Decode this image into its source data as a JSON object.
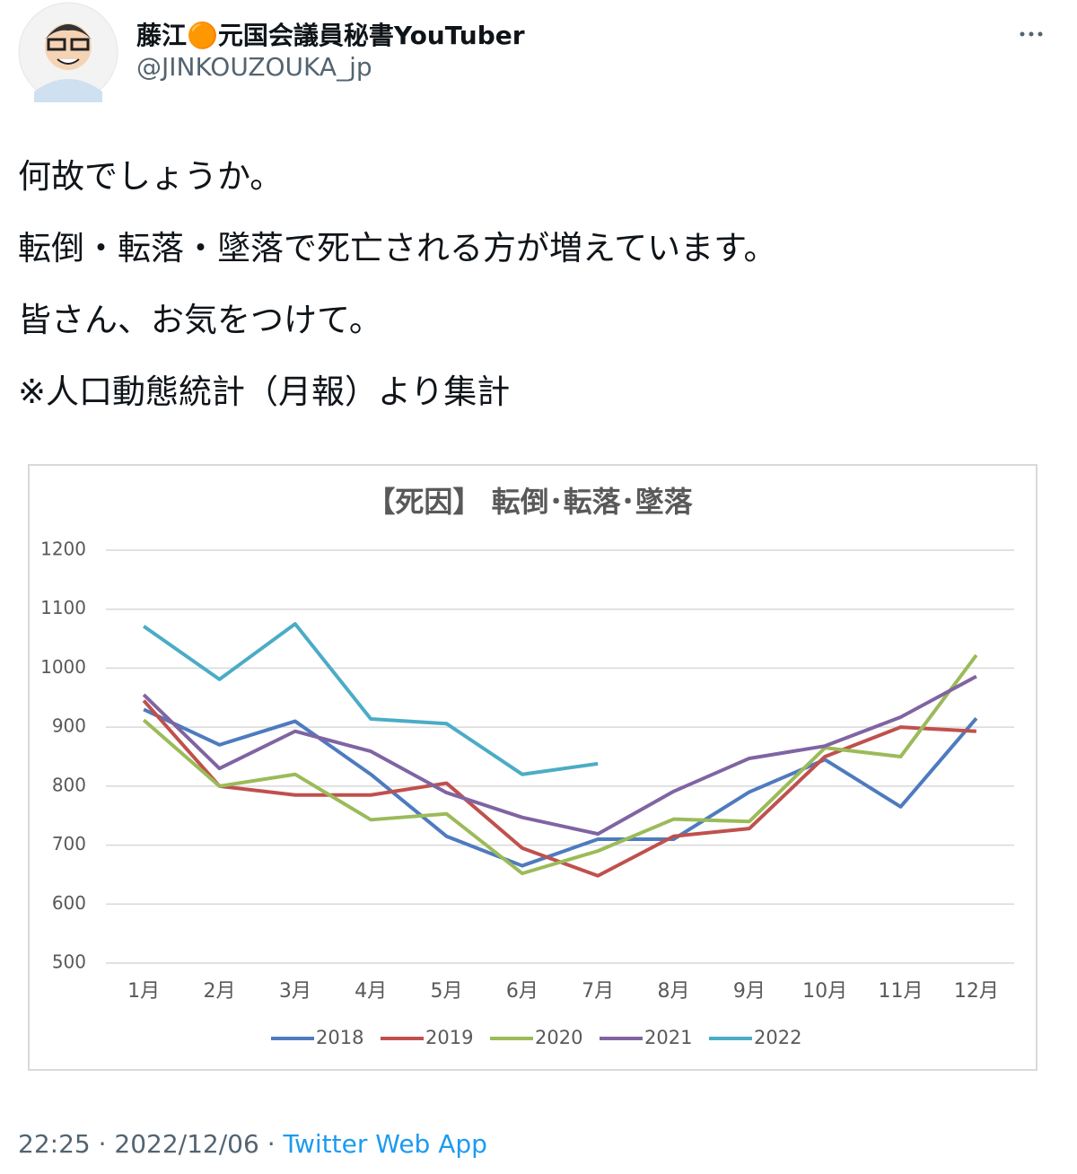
{
  "author": {
    "name": "藤江🟠元国会議員秘書YouTuber",
    "handle": "@JINKOUZOUKA_jp"
  },
  "post": {
    "lines": [
      "何故でしょうか。",
      "転倒・転落・墜落で死亡される方が増えています。",
      "皆さん、お気をつけて。",
      "※人口動態統計（月報）より集計"
    ]
  },
  "footer": {
    "time": "22:25",
    "separator": "·",
    "date": "2022/12/06",
    "source": "Twitter Web App"
  },
  "chart_data": {
    "type": "line",
    "title": "【死因】 転倒･転落･墜落",
    "categories": [
      "1月",
      "2月",
      "3月",
      "4月",
      "5月",
      "6月",
      "7月",
      "8月",
      "9月",
      "10月",
      "11月",
      "12月"
    ],
    "ylim": [
      500,
      1200
    ],
    "yticks": [
      500,
      600,
      700,
      800,
      900,
      1000,
      1100,
      1200
    ],
    "grid": true,
    "legend": "bottom",
    "series": [
      {
        "name": "2018",
        "color": "#4e7bbf",
        "values": [
          930,
          870,
          910,
          820,
          715,
          665,
          710,
          710,
          790,
          845,
          765,
          915
        ]
      },
      {
        "name": "2019",
        "color": "#c0504d",
        "values": [
          945,
          800,
          785,
          785,
          805,
          695,
          648,
          715,
          728,
          850,
          900,
          893
        ]
      },
      {
        "name": "2020",
        "color": "#9bbb59",
        "values": [
          912,
          800,
          820,
          743,
          753,
          652,
          690,
          744,
          740,
          865,
          850,
          1022
        ]
      },
      {
        "name": "2021",
        "color": "#8064a2",
        "values": [
          955,
          830,
          893,
          859,
          789,
          747,
          719,
          791,
          847,
          868,
          917,
          986
        ]
      },
      {
        "name": "2022",
        "color": "#4bacc6",
        "values": [
          1071,
          981,
          1075,
          914,
          906,
          820,
          838,
          null,
          null,
          null,
          null,
          null
        ]
      }
    ]
  }
}
